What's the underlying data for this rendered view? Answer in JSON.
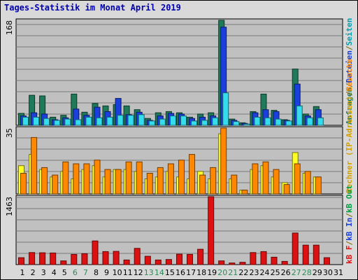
{
  "page": {
    "title": "Tages-Statistik im Monat April 2019",
    "colors": {
      "background": "#d9d9d9",
      "panel": "#c0c0c0",
      "gridline": "#7a7a7a",
      "weekday_label": "#000000",
      "weekend_label": "#2e8b57",
      "title": "#0000b0"
    }
  },
  "chart_data": [
    {
      "type": "bar",
      "categories": [
        "1",
        "2",
        "3",
        "4",
        "5",
        "6",
        "7",
        "8",
        "9",
        "10",
        "11",
        "12",
        "13",
        "14",
        "15",
        "16",
        "17",
        "18",
        "19",
        "20",
        "21",
        "22",
        "23",
        "24",
        "25",
        "26",
        "27",
        "28",
        "29",
        "30",
        "31"
      ],
      "weekend_categories": [
        "6",
        "7",
        "13",
        "14",
        "20",
        "21",
        "27",
        "28"
      ],
      "ymax_label": "168",
      "ylim": [
        0,
        168
      ],
      "series": [
        {
          "name": "Anfragen",
          "color": "#1f7a5a",
          "values": [
            19,
            48,
            47,
            13,
            16,
            50,
            21,
            35,
            31,
            33,
            31,
            25,
            11,
            20,
            22,
            20,
            13,
            18,
            20,
            168,
            10,
            4,
            22,
            50,
            24,
            9,
            90,
            18,
            30,
            0,
            0
          ]
        },
        {
          "name": "Dateien",
          "color": "#1a3fdc",
          "values": [
            15,
            20,
            18,
            9,
            12,
            26,
            16,
            29,
            22,
            43,
            17,
            21,
            8,
            15,
            19,
            18,
            11,
            13,
            15,
            157,
            8,
            3,
            20,
            25,
            22,
            8,
            66,
            15,
            25,
            0,
            0
          ]
        },
        {
          "name": "Seiten",
          "color": "#33ddee",
          "values": [
            13,
            13,
            11,
            8,
            10,
            9,
            13,
            12,
            13,
            16,
            16,
            17,
            7,
            10,
            15,
            15,
            7,
            8,
            12,
            52,
            6,
            2,
            13,
            12,
            10,
            7,
            31,
            12,
            12,
            0,
            0
          ]
        }
      ]
    },
    {
      "type": "bar",
      "categories": [
        "1",
        "2",
        "3",
        "4",
        "5",
        "6",
        "7",
        "8",
        "9",
        "10",
        "11",
        "12",
        "13",
        "14",
        "15",
        "16",
        "17",
        "18",
        "19",
        "20",
        "21",
        "22",
        "23",
        "24",
        "25",
        "26",
        "27",
        "28",
        "29",
        "30",
        "31"
      ],
      "ymax_label": "35",
      "ylim": [
        0,
        35
      ],
      "series": [
        {
          "name": "Rechner (IP-Adressen)",
          "color": "#ffff22",
          "values": [
            15,
            21,
            13,
            9,
            12,
            8,
            13,
            15,
            9,
            13,
            13,
            12,
            8,
            9,
            12,
            9,
            8,
            12,
            8,
            32,
            8,
            2,
            13,
            15,
            9,
            6,
            22,
            11,
            9,
            0,
            0
          ]
        },
        {
          "name": "Besuche",
          "color": "#ff8800",
          "values": [
            11,
            30,
            14,
            10,
            17,
            16,
            16,
            18,
            13,
            13,
            17,
            17,
            11,
            14,
            16,
            18,
            21,
            10,
            14,
            35,
            10,
            2,
            16,
            17,
            13,
            5,
            16,
            12,
            9,
            0,
            0
          ]
        }
      ]
    },
    {
      "type": "bar",
      "categories": [
        "1",
        "2",
        "3",
        "4",
        "5",
        "6",
        "7",
        "8",
        "9",
        "10",
        "11",
        "12",
        "13",
        "14",
        "15",
        "16",
        "17",
        "18",
        "19",
        "20",
        "21",
        "22",
        "23",
        "24",
        "25",
        "26",
        "27",
        "28",
        "29",
        "30",
        "31"
      ],
      "ymax_label": "1463",
      "ylim": [
        0,
        1463
      ],
      "series": [
        {
          "name": "kB F",
          "color": "#dd1111",
          "values": [
            150,
            260,
            255,
            250,
            80,
            220,
            235,
            510,
            280,
            285,
            100,
            350,
            180,
            100,
            110,
            225,
            220,
            330,
            1463,
            80,
            35,
            50,
            260,
            280,
            160,
            70,
            680,
            420,
            420,
            150,
            0
          ]
        }
      ]
    }
  ],
  "legend": {
    "panel1": [
      {
        "text": "Anfragen",
        "color": "#1f7a5a"
      },
      {
        "text": "/",
        "color": "#7a6a00"
      },
      {
        "text": "Dateien",
        "color": "#1a3fdc"
      },
      {
        "text": "/",
        "color": "#7a6a00"
      },
      {
        "text": "Seiten",
        "color": "#00a0b0"
      }
    ],
    "panel2": [
      {
        "text": "Rechner (IP-Adressen)",
        "color": "#d4a000"
      },
      {
        "text": "/",
        "color": "#7a6a00"
      },
      {
        "text": "Besuche",
        "color": "#ff8800"
      }
    ],
    "panel3": [
      {
        "text": "kB F",
        "color": "#dd1111"
      },
      {
        "text": "/",
        "color": "#7a6a00"
      },
      {
        "text": "kB In",
        "color": "#1a3fdc"
      },
      {
        "text": "/",
        "color": "#7a6a00"
      },
      {
        "text": "kB Out",
        "color": "#00a040"
      }
    ]
  }
}
